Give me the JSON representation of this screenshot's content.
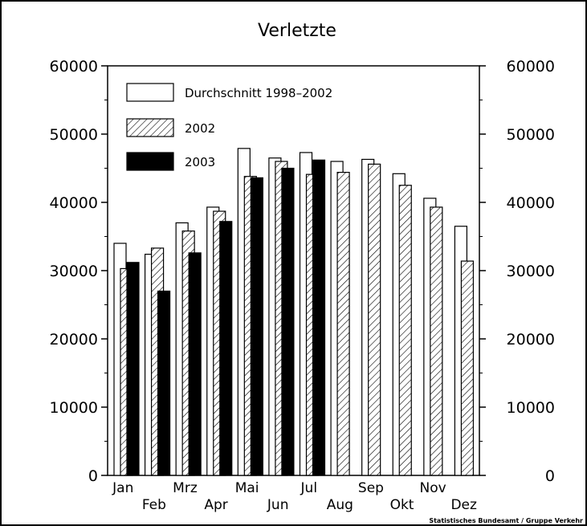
{
  "chart_data": {
    "type": "bar",
    "title": "Verletzte",
    "categories": [
      "Jan",
      "Feb",
      "Mrz",
      "Apr",
      "Mai",
      "Jun",
      "Jul",
      "Aug",
      "Sep",
      "Okt",
      "Nov",
      "Dez"
    ],
    "series": [
      {
        "name": "Durchschnitt 1998–2002",
        "fill": "white",
        "values": [
          34000,
          32400,
          37000,
          39300,
          47900,
          46500,
          47300,
          46000,
          46300,
          44200,
          40600,
          36500
        ]
      },
      {
        "name": "2002",
        "fill": "hatched",
        "values": [
          30300,
          33300,
          35800,
          38700,
          43800,
          46000,
          44100,
          44400,
          45600,
          42500,
          39300,
          31400
        ]
      },
      {
        "name": "2003",
        "fill": "black",
        "values": [
          31200,
          27000,
          32600,
          37200,
          43600,
          45000,
          46200,
          null,
          null,
          null,
          null,
          null
        ]
      }
    ],
    "ylim": [
      0,
      60000
    ],
    "yticks": [
      "0",
      "10000",
      "20000",
      "30000",
      "40000",
      "50000",
      "60000"
    ],
    "xlabel": "",
    "ylabel": "",
    "legend_position": "top-left",
    "grid": false
  },
  "source_note": "Statistisches Bundesamt / Gruppe Verkehr"
}
